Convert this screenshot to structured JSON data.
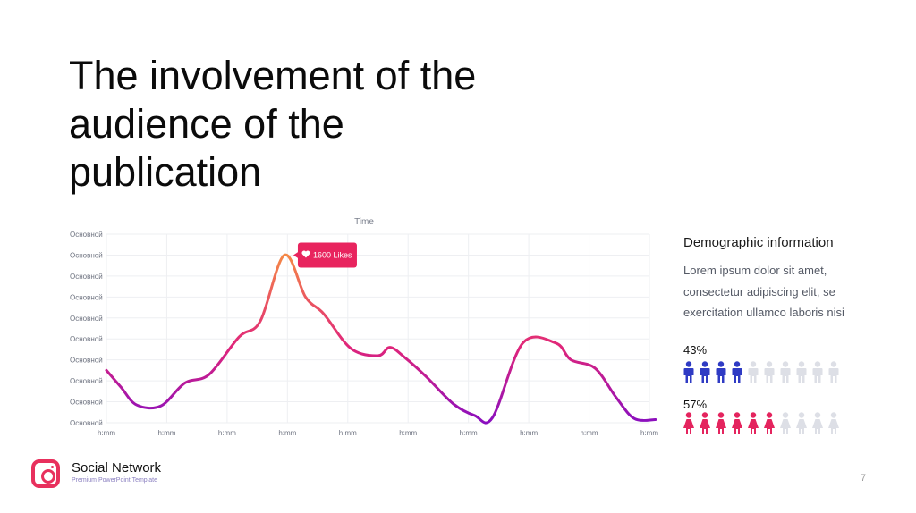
{
  "slide": {
    "title_lines": [
      "The involvement of the",
      "audience of the",
      "publication"
    ],
    "brand": "Social Network",
    "brand_subtitle": "Premium PowerPoint Template",
    "page_number": "7",
    "logo_icon": "instagram-icon"
  },
  "chart_data": {
    "type": "line",
    "title": "Time",
    "y_tick_labels": [
      "Основной",
      "Основной",
      "Основной",
      "Основной",
      "Основной",
      "Основной",
      "Основной",
      "Основной",
      "Основной",
      "Основной"
    ],
    "x_tick_labels": [
      "h:mm",
      "h:mm",
      "h:mm",
      "h:mm",
      "h:mm",
      "h:mm",
      "h:mm",
      "h:mm",
      "h:mm",
      "h:mm"
    ],
    "ylim": [
      0,
      9
    ],
    "grid": true,
    "series": [
      {
        "x": [
          0.0,
          0.24,
          0.5,
          0.9,
          1.3,
          1.7,
          2.2,
          2.55,
          2.95,
          3.3,
          3.6,
          4.05,
          4.5,
          4.7,
          4.95,
          5.3,
          5.75,
          6.1,
          6.4,
          6.9,
          7.45,
          7.7,
          8.1,
          8.45,
          8.75,
          9.1
        ],
        "values": [
          2.5,
          1.7,
          0.85,
          0.8,
          1.9,
          2.3,
          4.1,
          4.85,
          8.0,
          6.0,
          5.2,
          3.55,
          3.2,
          3.6,
          3.1,
          2.2,
          0.9,
          0.35,
          0.25,
          3.8,
          3.8,
          3.0,
          2.6,
          1.2,
          0.2,
          0.15
        ]
      }
    ],
    "gradient_colors": [
      "#8a0fbf",
      "#e0257a",
      "#f58a45"
    ],
    "annotation": {
      "label": "1600 Likes",
      "icon": "heart-icon",
      "x": 2.95,
      "y": 8.0,
      "color": "#e8245e"
    }
  },
  "demographics": {
    "heading": "Demographic information",
    "body_lines": [
      "Lorem ipsum dolor sit amet,",
      "consectetur adipiscing elit, se",
      "exercitation ullamco laboris nisi"
    ],
    "male": {
      "percent_label": "43%",
      "filled": 4,
      "total": 10,
      "color": "#2f3bc4",
      "icon": "male-person-icon"
    },
    "female": {
      "percent_label": "57%",
      "filled": 6,
      "total": 10,
      "color": "#e4245e",
      "icon": "female-person-icon"
    },
    "inactive_color": "#dddfe6"
  }
}
